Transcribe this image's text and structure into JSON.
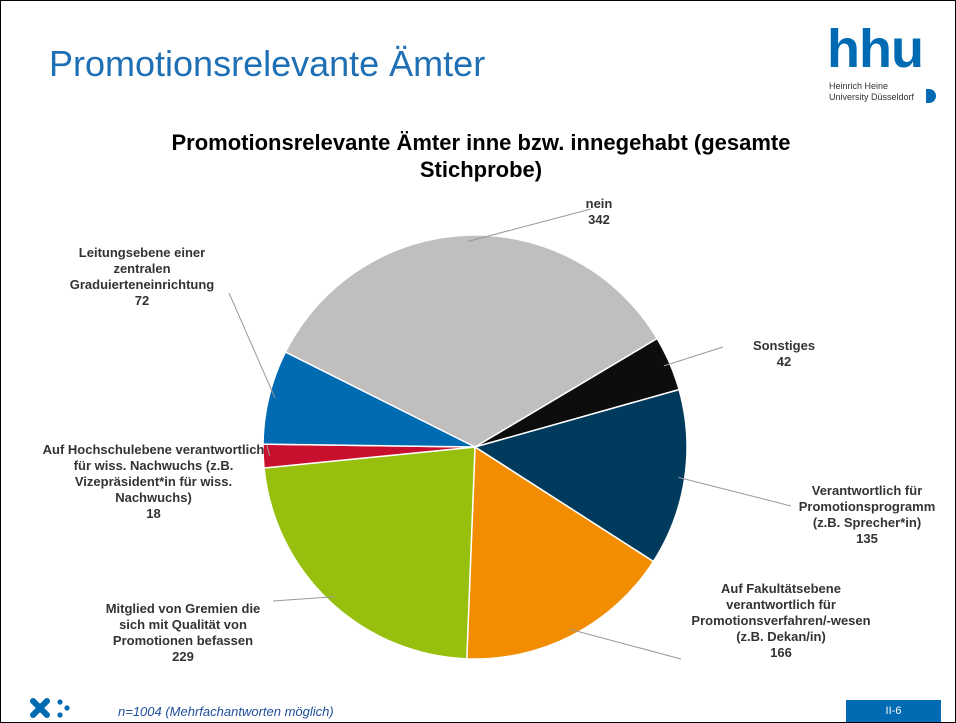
{
  "slide": {
    "heading": "Promotionsrelevante Ämter",
    "logo": "hhu",
    "logo_line1": "Heinrich Heine",
    "logo_line2": "University Düsseldorf",
    "footnote": "n=1004 (Mehrfachantworten möglich)",
    "page": "II-6"
  },
  "chart_data": {
    "type": "pie",
    "title": "Promotionsrelevante Ämter inne bzw. innegehabt (gesamte Stichprobe)",
    "categories": [
      "nein",
      "Sonstiges",
      "Verantwortlich für Promotionsprogramm (z.B. Sprecher*in)",
      "Auf Fakultätsebene verantwortlich für Promotionsverfahren/-wesen (z.B. Dekan/in)",
      "Mitglied von Gremien die sich mit Qualität von Promotionen befassen",
      "Auf Hochschulebene verantwortlich für wiss. Nachwuchs (z.B. Vizepräsident*in für wiss. Nachwuchs)",
      "Leitungsebene einer zentralen Graduierteneinrichtung"
    ],
    "values": [
      342,
      42,
      135,
      166,
      229,
      18,
      72
    ],
    "colors": [
      "#bfbfbf",
      "#0d0d0d",
      "#003a5d",
      "#f28c00",
      "#97bf0d",
      "#c8102e",
      "#006ab3"
    ]
  }
}
